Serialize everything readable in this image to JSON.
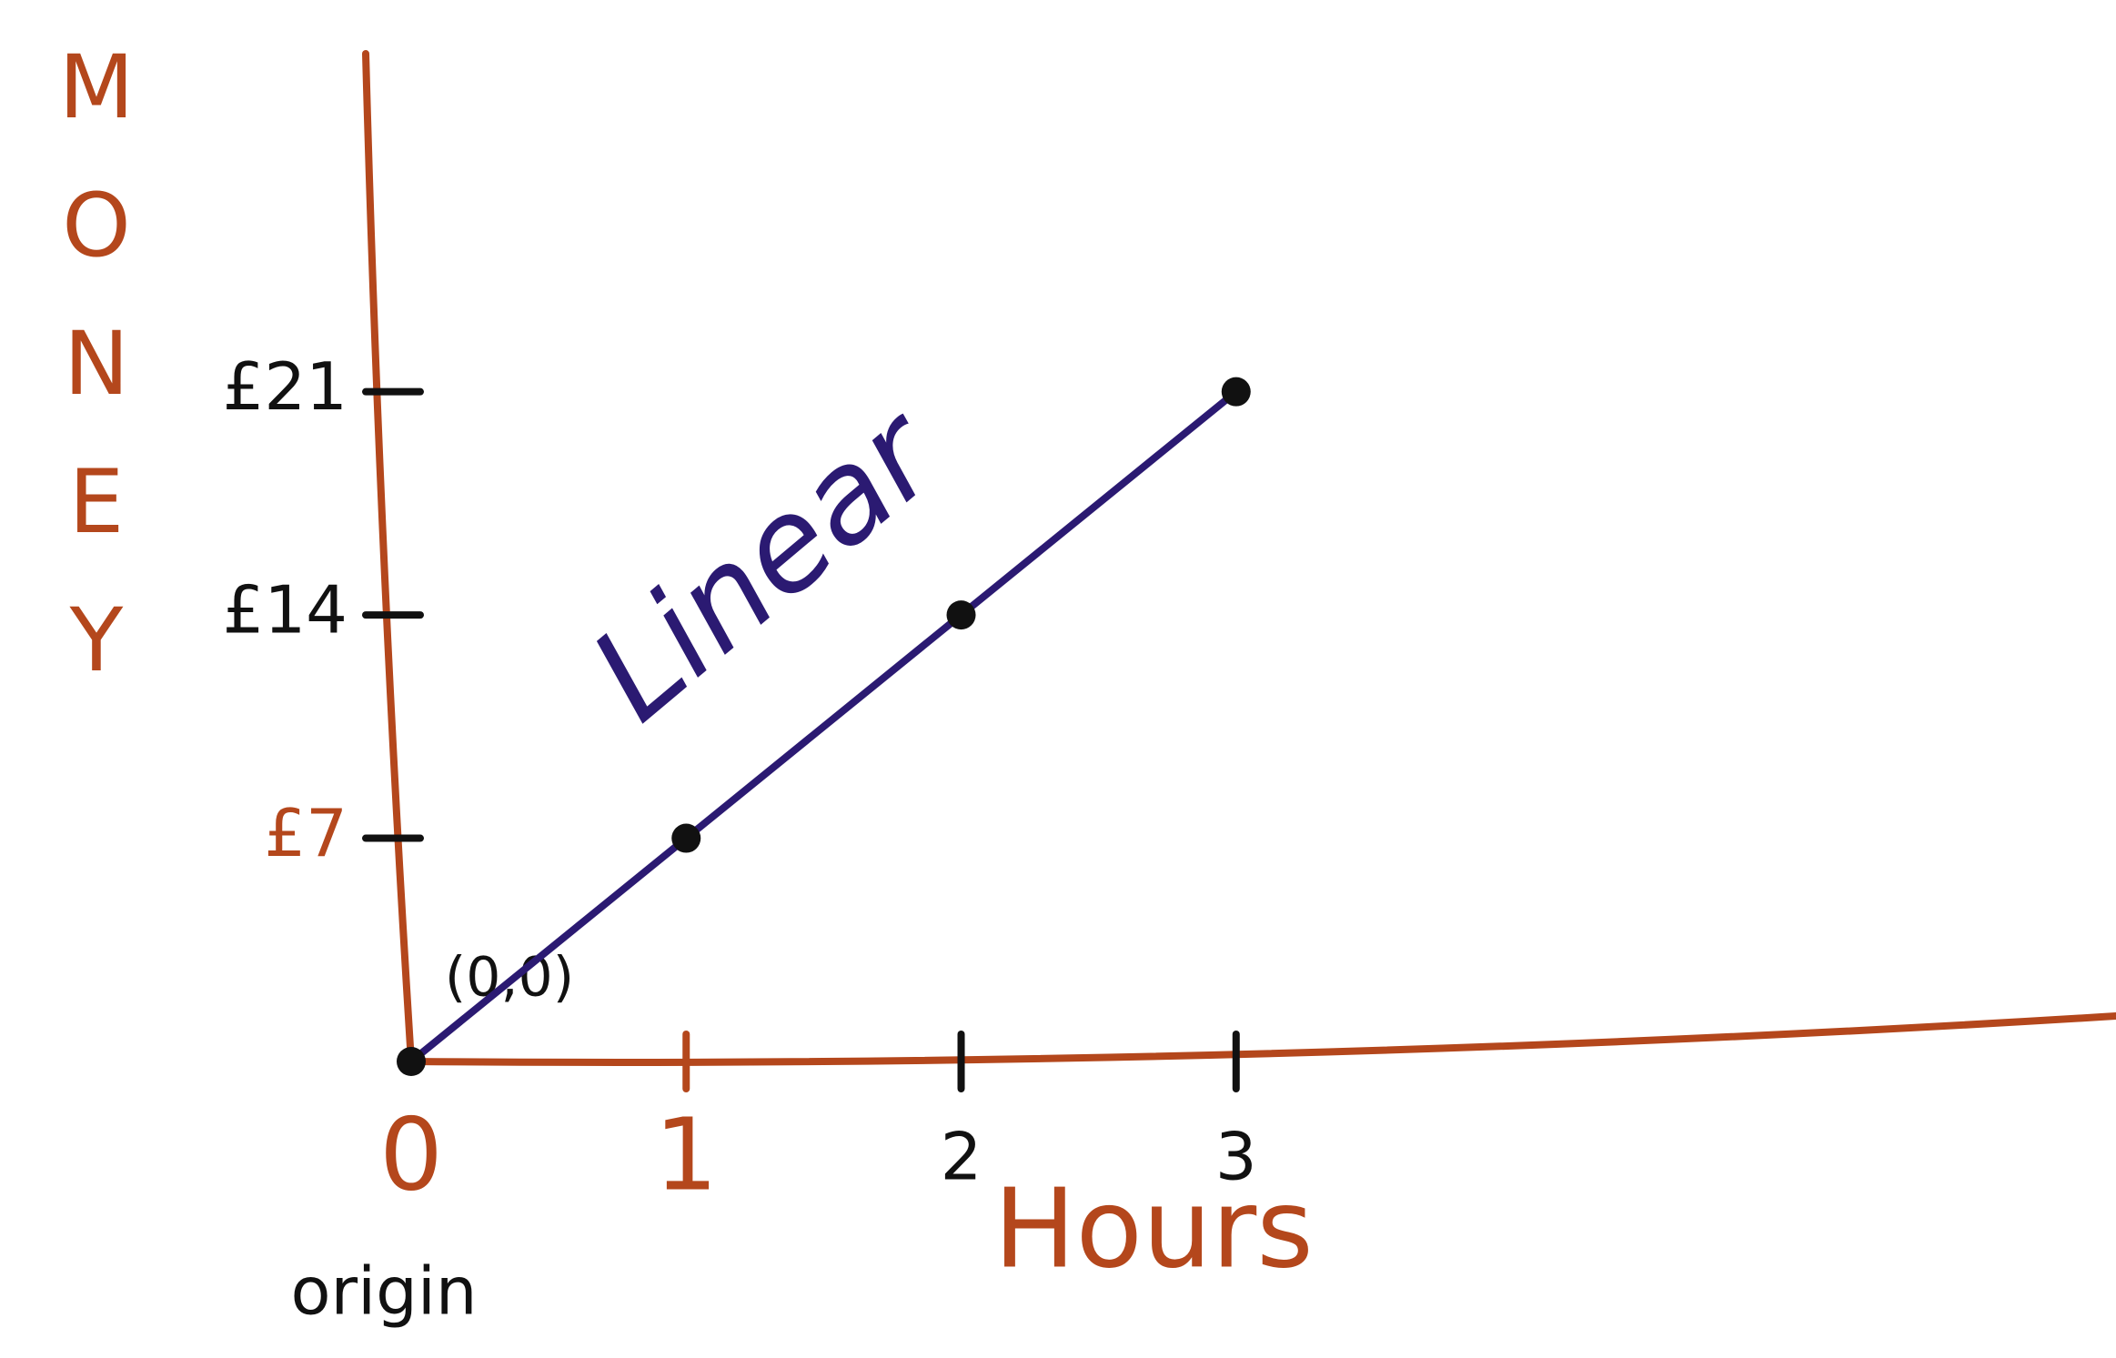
{
  "chart_data": {
    "type": "line",
    "x_label": "Hours",
    "y_label": "MONEY",
    "x": [
      0,
      1,
      2,
      3
    ],
    "series": [
      {
        "name": "Linear",
        "color": "#2b1a72",
        "values": [
          0,
          7,
          14,
          21
        ]
      }
    ],
    "xlim": [
      0,
      6.2
    ],
    "ylim": [
      0,
      31.6
    ],
    "xticks": [
      0,
      1,
      2,
      3
    ],
    "yticks": [
      {
        "value": 7,
        "label": "£7"
      },
      {
        "value": 14,
        "label": "£14"
      },
      {
        "value": 21,
        "label": "£21"
      }
    ],
    "grid": false,
    "annotations": [
      "(0,0)",
      "origin"
    ],
    "axis_color": "#b4471c"
  }
}
